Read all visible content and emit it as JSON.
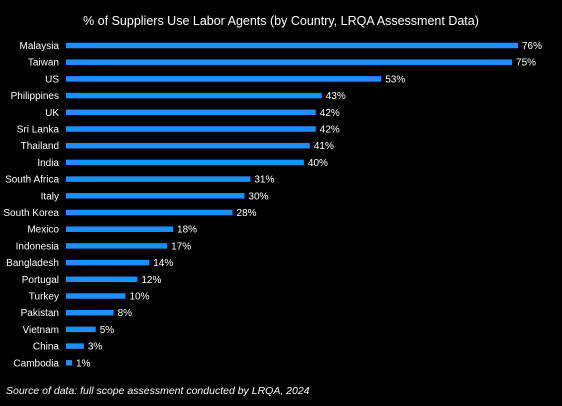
{
  "chart_data": {
    "type": "bar",
    "orientation": "horizontal",
    "title": "% of Suppliers Use Labor Agents (by Country, LRQA Assessment Data)",
    "xlabel": "",
    "ylabel": "",
    "categories": [
      "Malaysia",
      "Taiwan",
      "US",
      "Philippines",
      "UK",
      "Sri Lanka",
      "Thailand",
      "India",
      "South Africa",
      "Italy",
      "South Korea",
      "Mexico",
      "Indonesia",
      "Bangladesh",
      "Portugal",
      "Turkey",
      "Pakistan",
      "Vietnam",
      "China",
      "Cambodia"
    ],
    "values": [
      76,
      75,
      53,
      43,
      42,
      42,
      41,
      40,
      31,
      30,
      28,
      18,
      17,
      14,
      12,
      10,
      8,
      5,
      3,
      1
    ],
    "data_labels": [
      "76%",
      "75%",
      "53%",
      "43%",
      "42%",
      "42%",
      "41%",
      "40%",
      "31%",
      "30%",
      "28%",
      "18%",
      "17%",
      "14%",
      "12%",
      "10%",
      "8%",
      "5%",
      "3%",
      "1%"
    ],
    "xlim": [
      0,
      76
    ],
    "grid": false,
    "legend": "none",
    "bar_color": "#1e8fff",
    "background": "#000000"
  },
  "source_note": "Source of data: full scope assessment conducted by LRQA, 2024"
}
